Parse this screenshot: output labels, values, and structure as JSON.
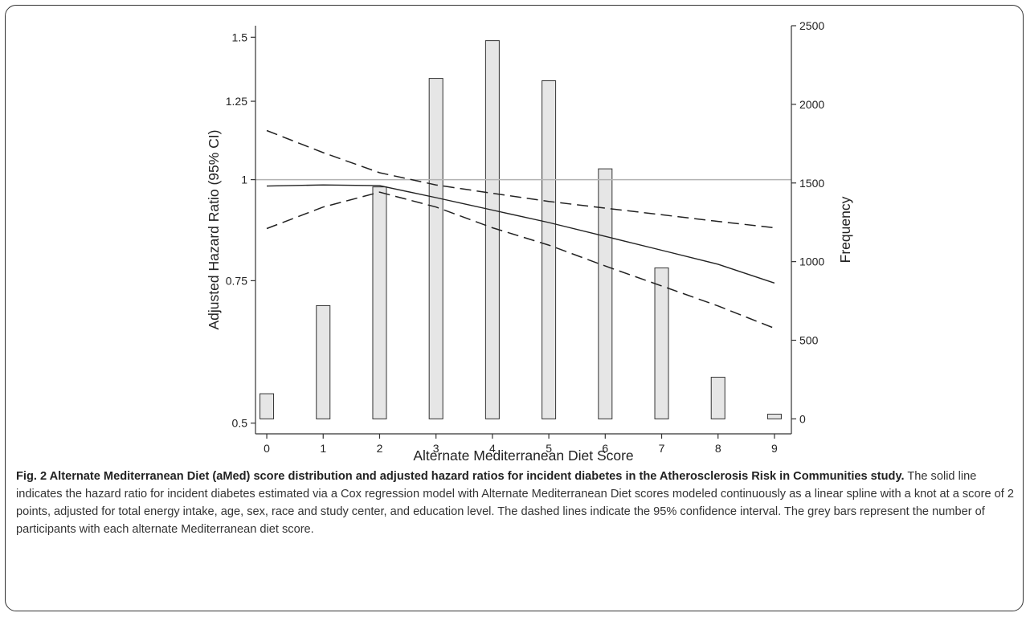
{
  "chart_data": {
    "type": "bar",
    "xlabel": "Alternate Mediterranean Diet Score",
    "ylabel_left": "Adjusted Hazard Ratio (95% CI)",
    "ylabel_right": "Frequency",
    "x_ticks": [
      0,
      1,
      2,
      3,
      4,
      5,
      6,
      7,
      8,
      9
    ],
    "x_range": [
      -0.2,
      9.3
    ],
    "y_left": {
      "scale": "log",
      "range": [
        0.485,
        1.55
      ],
      "ticks": [
        0.5,
        0.75,
        1,
        1.25,
        1.5
      ],
      "tick_labels": [
        "0.5",
        "0.75",
        "1",
        "1.25",
        "1.5"
      ]
    },
    "y_right": {
      "scale": "linear",
      "range": [
        -95,
        2500
      ],
      "ticks": [
        0,
        500,
        1000,
        1500,
        2000,
        2500
      ],
      "tick_labels": [
        "0",
        "500",
        "1000",
        "1500",
        "2000",
        "2500"
      ]
    },
    "bars": {
      "name": "Frequency",
      "axis": "right",
      "color": "#e6e6e6",
      "x": [
        0,
        1,
        2,
        3,
        4,
        5,
        6,
        7,
        8,
        9
      ],
      "values": [
        160,
        720,
        1475,
        2165,
        2405,
        2150,
        1590,
        960,
        265,
        30
      ]
    },
    "reference_line": {
      "y": 1,
      "axis": "left",
      "color": "#b3b3b3"
    },
    "hazard_ratio": {
      "axis": "left",
      "style": "solid",
      "x": [
        0,
        1,
        2,
        3,
        4,
        5,
        6,
        7,
        8,
        9
      ],
      "y": [
        0.982,
        0.985,
        0.983,
        0.95,
        0.917,
        0.885,
        0.851,
        0.818,
        0.786,
        0.745
      ]
    },
    "ci_upper": {
      "axis": "left",
      "style": "dashed",
      "x": [
        0,
        1,
        2,
        3,
        4,
        5,
        6,
        7,
        8,
        9
      ],
      "y": [
        1.15,
        1.08,
        1.02,
        0.985,
        0.962,
        0.94,
        0.922,
        0.905,
        0.888,
        0.872
      ]
    },
    "ci_lower": {
      "axis": "left",
      "style": "dashed",
      "x": [
        0,
        1,
        2,
        3,
        4,
        5,
        6,
        7,
        8,
        9
      ],
      "y": [
        0.87,
        0.925,
        0.965,
        0.925,
        0.872,
        0.83,
        0.782,
        0.739,
        0.698,
        0.655
      ]
    }
  },
  "caption": {
    "lead": "Fig. 2 Alternate Mediterranean Diet (aMed) score distribution and adjusted hazard ratios for incident diabetes in the Atherosclerosis Risk in Communities study.",
    "body": " The solid line indicates the hazard ratio for incident diabetes estimated via a Cox regression model with Alternate Mediterranean Diet scores modeled continuously as a linear spline with a knot at a score of 2 points, adjusted for total energy intake, age, sex, race and study center, and education level. The dashed lines indicate the 95% confidence interval. The grey bars represent the number of participants with each alternate Mediterranean diet score."
  }
}
